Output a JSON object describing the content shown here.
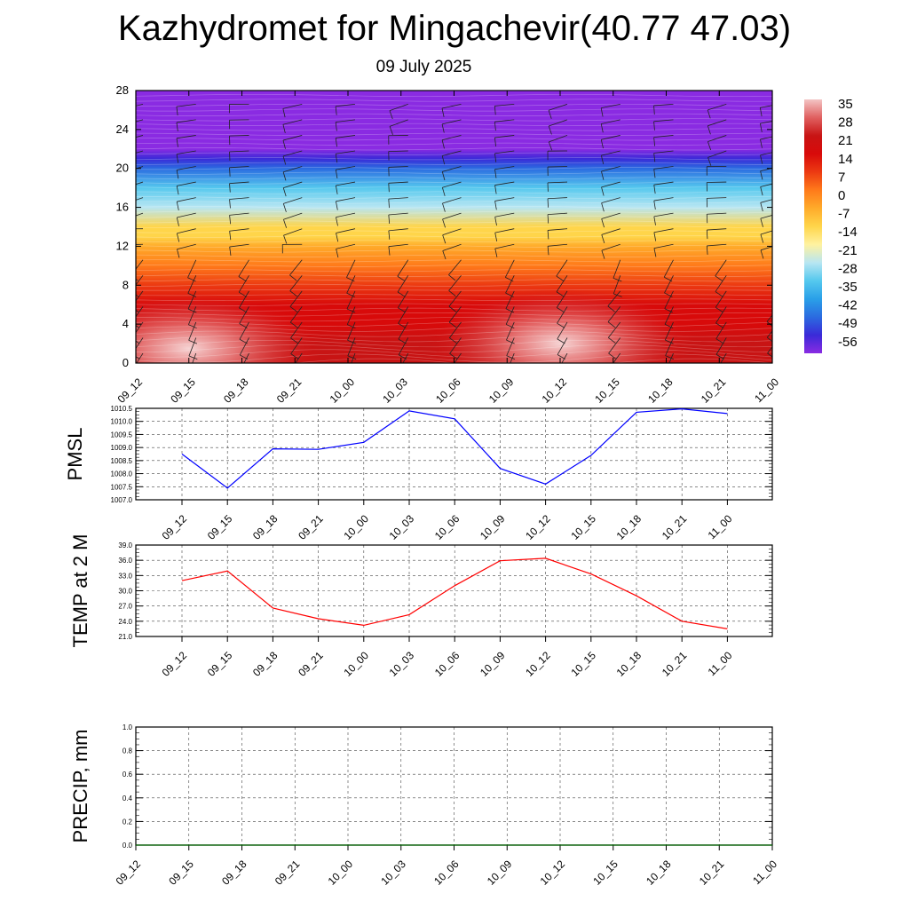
{
  "title": "Kazhydromet for Mingachevir(40.77 47.03)",
  "subtitle": "09 July 2025",
  "chart_data": [
    {
      "type": "heatmap",
      "title": "",
      "ylim": [
        0,
        28
      ],
      "y_ticks": [
        0,
        4,
        8,
        12,
        16,
        20,
        24,
        28
      ],
      "x_ticks": [
        "09_12",
        "09_15",
        "09_18",
        "09_21",
        "10_00",
        "10_03",
        "10_06",
        "10_09",
        "10_12",
        "10_15",
        "10_18",
        "10_21",
        "11_00"
      ],
      "colorbar": {
        "labels": [
          "35",
          "28",
          "21",
          "14",
          "7",
          "0",
          "-7",
          "-14",
          "-21",
          "-28",
          "-35",
          "-42",
          "-49",
          "-56"
        ],
        "range": [
          -60,
          39
        ],
        "colors": [
          "#8a2be2",
          "#3a2ad8",
          "#2b6be0",
          "#2aa0e8",
          "#55c8ee",
          "#b8e6f2",
          "#fff2a0",
          "#ffd54a",
          "#ffab2a",
          "#ff7a1a",
          "#ec3a12",
          "#d80a0a",
          "#c81414",
          "#e06060",
          "#f3c4c4"
        ]
      },
      "temperature_profile": [
        {
          "height": 0,
          "value": 27
        },
        {
          "height": 2,
          "value": 24
        },
        {
          "height": 4,
          "value": 20
        },
        {
          "height": 6,
          "value": 15
        },
        {
          "height": 8,
          "value": 10
        },
        {
          "height": 10,
          "value": 3
        },
        {
          "height": 12,
          "value": -4
        },
        {
          "height": 13,
          "value": -8
        },
        {
          "height": 14,
          "value": -14
        },
        {
          "height": 16,
          "value": -22
        },
        {
          "height": 18,
          "value": -33
        },
        {
          "height": 20,
          "value": -45
        },
        {
          "height": 21,
          "value": -56
        },
        {
          "height": 22,
          "value": -62
        },
        {
          "height": 28,
          "value": -60
        }
      ],
      "warm_cores": [
        {
          "time": "09_15",
          "height": 1.5,
          "value": 35
        },
        {
          "time": "10_12",
          "height": 2,
          "value": 35
        }
      ],
      "wind_barbs": "yes"
    },
    {
      "type": "line",
      "ylabel": "PMSL",
      "ylim": [
        1007.0,
        1010.5
      ],
      "y_ticks": [
        "1007.0",
        "1007.5",
        "1008.0",
        "1008.5",
        "1009.0",
        "1009.5",
        "1010.0",
        "1010.5"
      ],
      "x": [
        "09_12",
        "09_15",
        "09_18",
        "09_21",
        "10_00",
        "10_03",
        "10_06",
        "10_09",
        "10_12",
        "10_15",
        "10_18",
        "10_21",
        "11_00"
      ],
      "values": [
        1008.75,
        1007.45,
        1008.95,
        1008.93,
        1009.2,
        1010.4,
        1010.1,
        1008.2,
        1007.6,
        1008.7,
        1010.35,
        1010.48,
        1010.3
      ],
      "color": "#0000ff",
      "grid": "dashed"
    },
    {
      "type": "line",
      "ylabel": "TEMP at 2 M",
      "ylim": [
        21.0,
        39.0
      ],
      "y_ticks": [
        "21.0",
        "24.0",
        "27.0",
        "30.0",
        "33.0",
        "36.0",
        "39.0"
      ],
      "x": [
        "09_12",
        "09_15",
        "09_18",
        "09_21",
        "10_00",
        "10_03",
        "10_06",
        "10_09",
        "10_12",
        "10_15",
        "10_18",
        "10_21",
        "11_00"
      ],
      "values": [
        32.0,
        33.9,
        26.6,
        24.5,
        23.2,
        25.3,
        31.0,
        35.9,
        36.4,
        33.3,
        29.0,
        24.0,
        22.5
      ],
      "color": "#ff0000",
      "grid": "dashed"
    },
    {
      "type": "line",
      "ylabel": "PRECIP, mm",
      "ylim": [
        0.0,
        1.0
      ],
      "y_ticks": [
        "0.0",
        "0.2",
        "0.4",
        "0.6",
        "0.8",
        "1.0"
      ],
      "x_ticks": [
        "09_12",
        "09_15",
        "09_18",
        "09_21",
        "10_00",
        "10_03",
        "10_06",
        "10_09",
        "10_12",
        "10_15",
        "10_18",
        "10_21",
        "11_00"
      ],
      "values": [
        0,
        0,
        0,
        0,
        0,
        0,
        0,
        0,
        0,
        0,
        0,
        0,
        0
      ],
      "color": "#006400",
      "grid": "dashed"
    }
  ]
}
